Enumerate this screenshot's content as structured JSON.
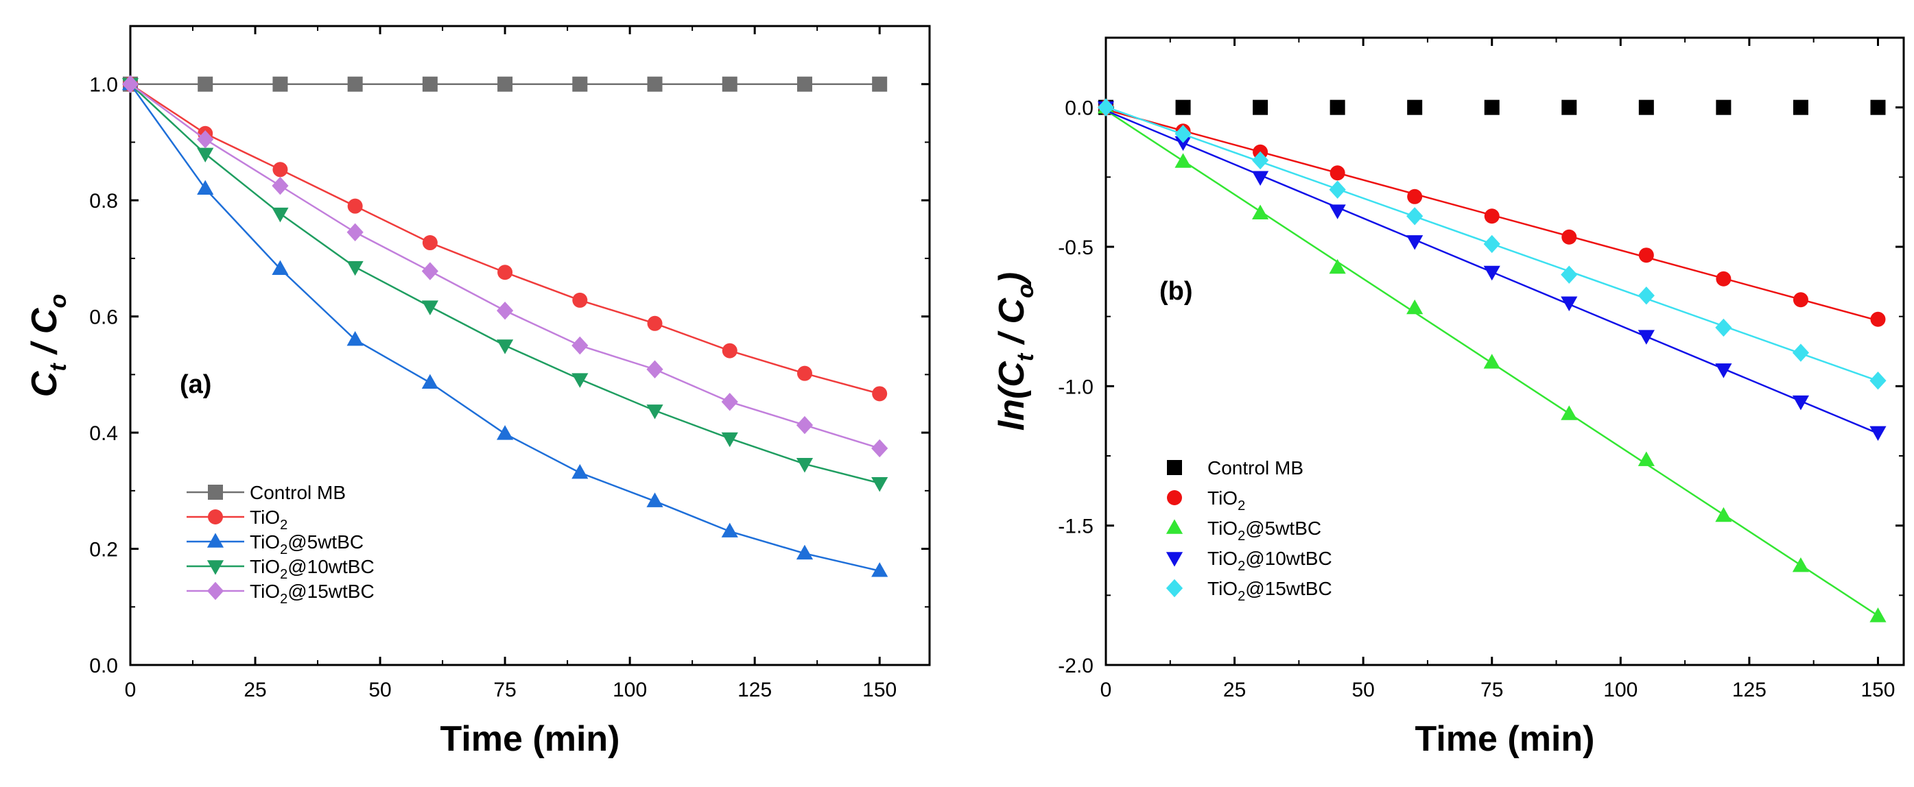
{
  "chart_data": [
    {
      "type": "line",
      "panel_label": "(a)",
      "xlabel": "Time (min)",
      "ylabel": "C_t / C_o",
      "xlim": [
        0,
        160
      ],
      "ylim": [
        0,
        1.1
      ],
      "x_ticks": [
        0,
        25,
        50,
        75,
        100,
        125,
        150
      ],
      "y_ticks": [
        0.0,
        0.2,
        0.4,
        0.6,
        0.8,
        1.0
      ],
      "x": [
        0,
        15,
        30,
        45,
        60,
        75,
        90,
        105,
        120,
        135,
        150
      ],
      "legend_position": "bottom-left",
      "series": [
        {
          "name": "Control MB",
          "sub": "",
          "base": "",
          "color": "#707070",
          "marker": "square",
          "values": [
            1.0,
            1.0,
            1.0,
            1.0,
            1.0,
            1.0,
            1.0,
            1.0,
            1.0,
            1.0,
            1.0
          ]
        },
        {
          "name": "TiO2",
          "base": "TiO",
          "sub": "2",
          "suffix": "",
          "color": "#f03c3c",
          "marker": "circle",
          "values": [
            1.0,
            0.915,
            0.853,
            0.79,
            0.727,
            0.676,
            0.628,
            0.588,
            0.541,
            0.502,
            0.467
          ]
        },
        {
          "name": "TiO2@5wtBC",
          "base": "TiO",
          "sub": "2",
          "suffix": "@5wtBC",
          "color": "#1e6fd9",
          "marker": "triangle-up",
          "values": [
            1.0,
            0.82,
            0.682,
            0.56,
            0.486,
            0.398,
            0.331,
            0.282,
            0.23,
            0.192,
            0.162
          ]
        },
        {
          "name": "TiO2@10wtBC",
          "base": "TiO",
          "sub": "2",
          "suffix": "@10wtBC",
          "color": "#1f9e61",
          "marker": "triangle-down",
          "values": [
            1.0,
            0.88,
            0.777,
            0.685,
            0.617,
            0.55,
            0.492,
            0.438,
            0.39,
            0.346,
            0.313
          ]
        },
        {
          "name": "TiO2@15wtBC",
          "base": "TiO",
          "sub": "2",
          "suffix": "@15wtBC",
          "color": "#c27fdc",
          "marker": "diamond",
          "values": [
            1.0,
            0.905,
            0.825,
            0.745,
            0.678,
            0.61,
            0.55,
            0.509,
            0.453,
            0.413,
            0.373
          ]
        }
      ]
    },
    {
      "type": "scatter",
      "panel_label": "(b)",
      "xlabel": "Time (min)",
      "ylabel": "ln(C_t / C_o)",
      "xlim": [
        0,
        155
      ],
      "ylim": [
        -2.0,
        0.25
      ],
      "x_ticks": [
        0,
        25,
        50,
        75,
        100,
        125,
        150
      ],
      "y_ticks": [
        0.0,
        -0.5,
        -1.0,
        -1.5,
        -2.0
      ],
      "x": [
        0,
        15,
        30,
        45,
        60,
        75,
        90,
        105,
        120,
        135,
        150
      ],
      "legend_position": "bottom-left",
      "fit_lines": true,
      "series": [
        {
          "name": "Control MB",
          "base": "",
          "sub": "",
          "suffix": "",
          "color": "#000000",
          "marker": "square",
          "fit": false,
          "values": [
            0,
            0,
            0,
            0,
            0,
            0,
            0,
            0,
            0,
            0,
            0
          ]
        },
        {
          "name": "TiO2",
          "base": "TiO",
          "sub": "2",
          "suffix": "",
          "color": "#ee1111",
          "marker": "circle",
          "fit": true,
          "values": [
            0,
            -0.085,
            -0.16,
            -0.235,
            -0.32,
            -0.39,
            -0.465,
            -0.53,
            -0.615,
            -0.69,
            -0.76
          ]
        },
        {
          "name": "TiO2@5wtBC",
          "base": "TiO",
          "sub": "2",
          "suffix": "@5wtBC",
          "color": "#33e633",
          "marker": "triangle-up",
          "fit": true,
          "values": [
            0,
            -0.195,
            -0.38,
            -0.575,
            -0.72,
            -0.915,
            -1.1,
            -1.265,
            -1.465,
            -1.645,
            -1.825
          ]
        },
        {
          "name": "TiO2@10wtBC",
          "base": "TiO",
          "sub": "2",
          "suffix": "@10wtBC",
          "color": "#1010e8",
          "marker": "triangle-down",
          "fit": true,
          "values": [
            0,
            -0.125,
            -0.25,
            -0.37,
            -0.48,
            -0.59,
            -0.7,
            -0.82,
            -0.94,
            -1.055,
            -1.165
          ]
        },
        {
          "name": "TiO2@15wtBC",
          "base": "TiO",
          "sub": "2",
          "suffix": "@15wtBC",
          "color": "#3ce0f0",
          "marker": "diamond",
          "fit": true,
          "values": [
            0,
            -0.095,
            -0.19,
            -0.295,
            -0.39,
            -0.49,
            -0.6,
            -0.675,
            -0.79,
            -0.88,
            -0.98
          ]
        }
      ]
    }
  ]
}
